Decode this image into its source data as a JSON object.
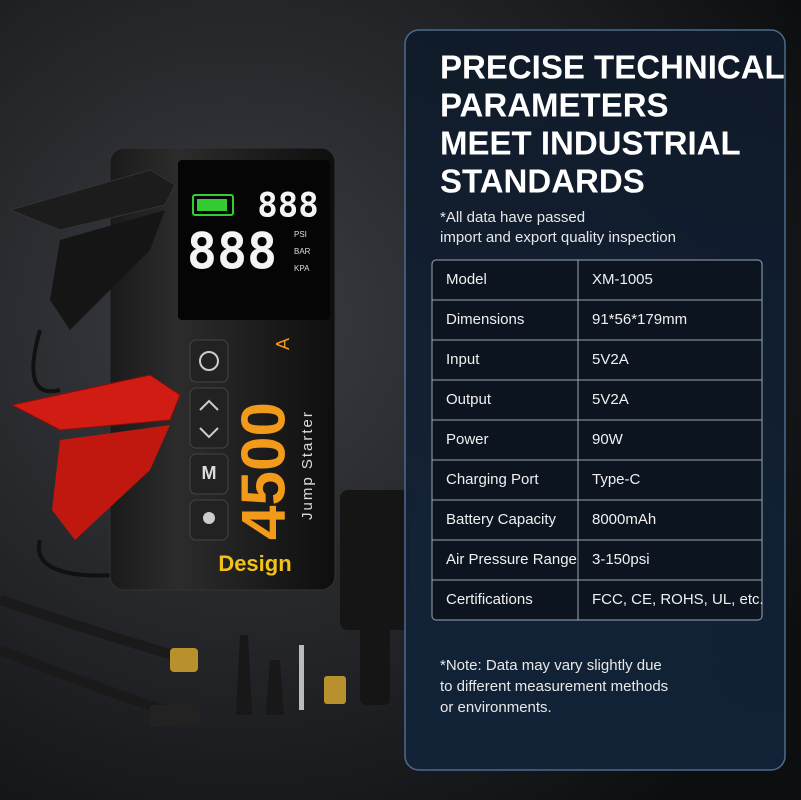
{
  "panel": {
    "title_lines": [
      "PRECISE TECHNICAL",
      "PARAMETERS",
      "MEET INDUSTRIAL",
      "STANDARDS"
    ],
    "subtitle_lines": [
      "*All data have passed",
      "import and export quality inspection"
    ],
    "specs": [
      {
        "label": "Model",
        "value": "XM-1005"
      },
      {
        "label": "Dimensions",
        "value": "91*56*179mm"
      },
      {
        "label": "Input",
        "value": "5V2A"
      },
      {
        "label": "Output",
        "value": "5V2A"
      },
      {
        "label": "Power",
        "value": "90W"
      },
      {
        "label": "Charging Port",
        "value": "Type-C"
      },
      {
        "label": "Battery Capacity",
        "value": "8000mAh"
      },
      {
        "label": "Air Pressure Range",
        "value": "3-150psi"
      },
      {
        "label": "Certifications",
        "value": "FCC, CE, ROHS, UL, etc."
      }
    ],
    "note_lines": [
      "*Note: Data may vary slightly due",
      "to different measurement methods",
      "or environments."
    ]
  },
  "product": {
    "lcd_small": "888",
    "lcd_large": "888",
    "units": [
      "PSI",
      "BAR",
      "KPA"
    ],
    "model_text": "4500",
    "model_suffix": "A",
    "name": "Jump Starter",
    "brand": "Design",
    "mode_button": "M"
  }
}
